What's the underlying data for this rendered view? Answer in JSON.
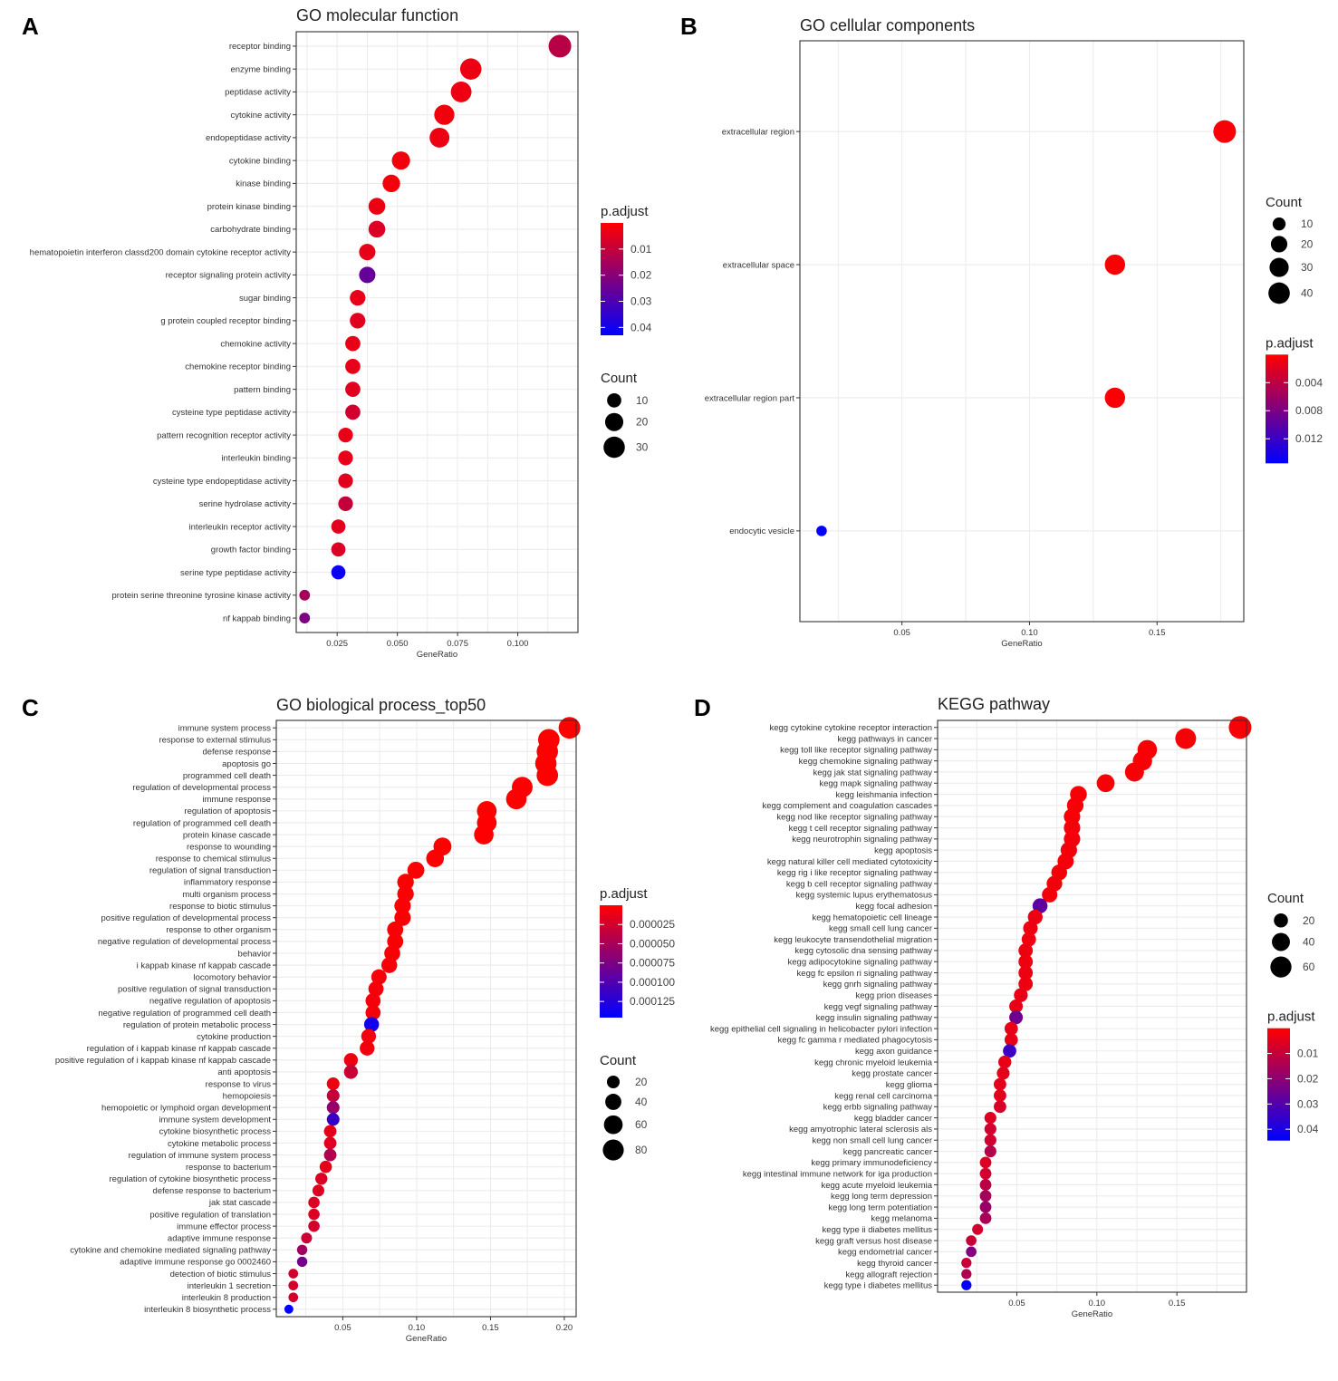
{
  "panels": [
    {
      "letter": "A"
    },
    {
      "letter": "B"
    },
    {
      "letter": "C"
    },
    {
      "letter": "D"
    }
  ],
  "colors": {
    "low_p": "#ff0000",
    "high_p": "#0000ff",
    "grid": "#ebebeb",
    "frame": "#333333"
  },
  "chart_data": [
    {
      "type": "scatter",
      "title": "GO molecular function",
      "xlabel": "GeneRatio",
      "xlim": [
        0.008,
        0.125
      ],
      "xticks": [
        0.025,
        0.05,
        0.075,
        0.1
      ],
      "xtick_labels": [
        "0.025",
        "0.050",
        "0.075",
        "0.100"
      ],
      "categories": [
        "receptor binding",
        "enzyme binding",
        "peptidase activity",
        "cytokine activity",
        "endopeptidase activity",
        "cytokine binding",
        "kinase binding",
        "protein kinase binding",
        "carbohydrate binding",
        "hematopoietin interferon classd200 domain cytokine receptor activity",
        "receptor signaling protein activity",
        "sugar binding",
        "g protein coupled receptor binding",
        "chemokine activity",
        "chemokine receptor binding",
        "pattern binding",
        "cysteine type peptidase activity",
        "pattern recognition receptor activity",
        "interleukin binding",
        "cysteine type endopeptidase activity",
        "serine hydrolase activity",
        "interleukin receptor activity",
        "growth factor binding",
        "serine type peptidase activity",
        "protein serine threonine tyrosine kinase activity",
        "nf kappab binding"
      ],
      "gene_ratio": [
        0.1175,
        0.0805,
        0.0765,
        0.0695,
        0.0675,
        0.0515,
        0.0475,
        0.0415,
        0.0415,
        0.0375,
        0.0375,
        0.0335,
        0.0335,
        0.0315,
        0.0315,
        0.0315,
        0.0315,
        0.0285,
        0.0285,
        0.0285,
        0.0285,
        0.0255,
        0.0255,
        0.0255,
        0.0115,
        0.0115
      ],
      "count": [
        35,
        30,
        28,
        26,
        25,
        20,
        18,
        16,
        16,
        15,
        15,
        13,
        13,
        12,
        12,
        12,
        12,
        11,
        11,
        11,
        11,
        10,
        10,
        10,
        4,
        4
      ],
      "p_adjust": [
        0.012,
        0.003,
        0.003,
        0.002,
        0.003,
        0.002,
        0.002,
        0.003,
        0.006,
        0.004,
        0.026,
        0.004,
        0.005,
        0.004,
        0.004,
        0.005,
        0.008,
        0.004,
        0.004,
        0.005,
        0.01,
        0.005,
        0.006,
        0.041,
        0.015,
        0.022
      ],
      "legend": {
        "color_title": "p.adjust",
        "color_range": [
          0.0,
          0.043
        ],
        "color_ticks": [
          0.01,
          0.02,
          0.03,
          0.04
        ],
        "color_labels": [
          "0.01",
          "0.02",
          "0.03",
          "0.04"
        ],
        "size_title": "Count",
        "sizes": [
          10,
          20,
          30
        ],
        "size_labels": [
          "10",
          "20",
          "30"
        ],
        "order": "color-first"
      }
    },
    {
      "type": "scatter",
      "title": "GO cellular components",
      "xlabel": "GeneRatio",
      "xlim": [
        0.01,
        0.184
      ],
      "xticks": [
        0.05,
        0.1,
        0.15
      ],
      "xtick_labels": [
        "0.05",
        "0.10",
        "0.15"
      ],
      "categories": [
        "extracellular region",
        "extracellular space",
        "extracellular region part",
        "endocytic vesicle"
      ],
      "gene_ratio": [
        0.1765,
        0.1335,
        0.1335,
        0.0185
      ],
      "count": [
        46,
        35,
        35,
        5
      ],
      "p_adjust": [
        0.0004,
        0.0003,
        0.0003,
        0.0155
      ],
      "legend": {
        "color_title": "p.adjust",
        "color_range": [
          0.0,
          0.0155
        ],
        "color_ticks": [
          0.004,
          0.008,
          0.012
        ],
        "color_labels": [
          "0.004",
          "0.008",
          "0.012"
        ],
        "size_title": "Count",
        "sizes": [
          10,
          20,
          30,
          40
        ],
        "size_labels": [
          "10",
          "20",
          "30",
          "40"
        ],
        "order": "size-first"
      }
    },
    {
      "type": "scatter",
      "title": "GO biological process_top50",
      "xlabel": "GeneRatio",
      "xlim": [
        0.005,
        0.208
      ],
      "xticks": [
        0.05,
        0.1,
        0.15,
        0.2
      ],
      "xtick_labels": [
        "0.05",
        "0.10",
        "0.15",
        "0.20"
      ],
      "categories": [
        "immune system process",
        "response to external stimulus",
        "defense response",
        "apoptosis go",
        "programmed cell death",
        "regulation of developmental process",
        "immune response",
        "regulation of apoptosis",
        "regulation of programmed cell death",
        "protein kinase cascade",
        "response to wounding",
        "response to chemical stimulus",
        "regulation of signal transduction",
        "inflammatory response",
        "multi organism process",
        "response to biotic stimulus",
        "positive regulation of developmental process",
        "response to other organism",
        "negative regulation of developmental process",
        "behavior",
        "i kappab kinase nf kappab cascade",
        "locomotory behavior",
        "positive regulation of signal transduction",
        "negative regulation of apoptosis",
        "negative regulation of programmed cell death",
        "regulation of protein metabolic process",
        "cytokine production",
        "regulation of i kappab kinase nf kappab cascade",
        "positive regulation of i kappab kinase nf kappab cascade",
        "anti apoptosis",
        "response to virus",
        "hemopoiesis",
        "hemopoietic or lymphoid organ development",
        "immune system development",
        "cytokine biosynthetic process",
        "cytokine metabolic process",
        "regulation of immune system process",
        "response to bacterium",
        "regulation of cytokine biosynthetic process",
        "defense response to bacterium",
        "jak stat cascade",
        "positive regulation of translation",
        "immune effector process",
        "adaptive immune response",
        "cytokine and chemokine mediated signaling pathway",
        "adaptive immune response go 0002460",
        "detection of biotic stimulus",
        "interleukin 1 secretion",
        "interleukin 8 production",
        "interleukin 8 biosynthetic process"
      ],
      "gene_ratio": [
        0.2035,
        0.1895,
        0.1885,
        0.1875,
        0.1885,
        0.1715,
        0.1675,
        0.1475,
        0.1475,
        0.1455,
        0.1175,
        0.1125,
        0.0995,
        0.0925,
        0.0925,
        0.0905,
        0.0905,
        0.0855,
        0.0855,
        0.0835,
        0.0815,
        0.0745,
        0.0725,
        0.0705,
        0.0705,
        0.0695,
        0.0675,
        0.0665,
        0.0555,
        0.0555,
        0.0435,
        0.0435,
        0.0435,
        0.0435,
        0.0415,
        0.0415,
        0.0415,
        0.0385,
        0.0355,
        0.0335,
        0.0305,
        0.0305,
        0.0305,
        0.0255,
        0.0225,
        0.0225,
        0.0165,
        0.0165,
        0.0165,
        0.0135
      ],
      "count": [
        88,
        85,
        84,
        84,
        85,
        78,
        76,
        68,
        68,
        67,
        54,
        52,
        46,
        43,
        43,
        42,
        42,
        40,
        40,
        39,
        38,
        35,
        34,
        33,
        33,
        32,
        31,
        31,
        26,
        26,
        20,
        20,
        20,
        20,
        19,
        19,
        19,
        18,
        17,
        16,
        14,
        14,
        14,
        12,
        10,
        10,
        8,
        8,
        8,
        6
      ],
      "p_adjust": [
        2e-08,
        1e-07,
        1e-07,
        2e-07,
        2e-07,
        3e-07,
        4e-07,
        5e-07,
        5e-07,
        6e-07,
        1e-06,
        1.2e-06,
        2e-06,
        2e-06,
        2e-06,
        2.5e-06,
        3e-06,
        3e-06,
        3e-06,
        3.5e-06,
        4e-06,
        5e-06,
        5e-06,
        6e-06,
        6e-06,
        0.000135,
        7e-06,
        8e-06,
        1e-05,
        3.2e-05,
        1e-05,
        3.5e-05,
        6e-05,
        0.000115,
        1.5e-05,
        1.8e-05,
        4.5e-05,
        1.5e-05,
        2e-05,
        2e-05,
        2e-05,
        2e-05,
        2.5e-05,
        3e-05,
        5.5e-05,
        8e-05,
        2.5e-05,
        2.5e-05,
        2.5e-05,
        0.000145
      ],
      "legend": {
        "color_title": "p.adjust",
        "color_range": [
          0.0,
          0.000146
        ],
        "color_ticks": [
          2.5e-05,
          5e-05,
          7.5e-05,
          0.0001,
          0.000125
        ],
        "color_labels": [
          "0.000025",
          "0.000050",
          "0.000075",
          "0.000100",
          "0.000125"
        ],
        "size_title": "Count",
        "sizes": [
          20,
          40,
          60,
          80
        ],
        "size_labels": [
          "20",
          "40",
          "60",
          "80"
        ],
        "order": "color-first"
      }
    },
    {
      "type": "scatter",
      "title": "KEGG pathway",
      "xlabel": "GeneRatio",
      "xlim": [
        0.0005,
        0.1935
      ],
      "xticks": [
        0.05,
        0.1,
        0.15
      ],
      "xtick_labels": [
        "0.05",
        "0.10",
        "0.15"
      ],
      "categories": [
        "kegg cytokine cytokine receptor interaction",
        "kegg pathways in cancer",
        "kegg toll like receptor signaling pathway",
        "kegg chemokine signaling pathway",
        "kegg jak stat signaling pathway",
        "kegg mapk signaling pathway",
        "kegg leishmania infection",
        "kegg complement and coagulation cascades",
        "kegg nod like receptor signaling pathway",
        "kegg t cell receptor signaling pathway",
        "kegg neurotrophin signaling pathway",
        "kegg apoptosis",
        "kegg natural killer cell mediated cytotoxicity",
        "kegg rig i like receptor signaling pathway",
        "kegg b cell receptor signaling pathway",
        "kegg systemic lupus erythematosus",
        "kegg focal adhesion",
        "kegg hematopoietic cell lineage",
        "kegg small cell lung cancer",
        "kegg leukocyte transendothelial migration",
        "kegg cytosolic dna sensing pathway",
        "kegg adipocytokine signaling pathway",
        "kegg fc epsilon ri signaling pathway",
        "kegg gnrh signaling pathway",
        "kegg prion diseases",
        "kegg vegf signaling pathway",
        "kegg insulin signaling pathway",
        "kegg epithelial cell signaling in helicobacter pylori infection",
        "kegg fc gamma r mediated phagocytosis",
        "kegg axon guidance",
        "kegg chronic myeloid leukemia",
        "kegg prostate cancer",
        "kegg glioma",
        "kegg renal cell carcinoma",
        "kegg erbb signaling pathway",
        "kegg bladder cancer",
        "kegg amyotrophic lateral sclerosis als",
        "kegg non small cell lung cancer",
        "kegg pancreatic cancer",
        "kegg primary immunodeficiency",
        "kegg intestinal immune network for iga production",
        "kegg acute myeloid leukemia",
        "kegg long term depression",
        "kegg long term potentiation",
        "kegg melanoma",
        "kegg type ii diabetes mellitus",
        "kegg graft versus host disease",
        "kegg endometrial cancer",
        "kegg thyroid cancer",
        "kegg allograft rejection",
        "kegg type i diabetes mellitus"
      ],
      "gene_ratio": [
        0.1895,
        0.1555,
        0.1315,
        0.1285,
        0.1235,
        0.1055,
        0.0885,
        0.0865,
        0.0845,
        0.0845,
        0.0845,
        0.0825,
        0.0805,
        0.0765,
        0.0735,
        0.0705,
        0.0645,
        0.0615,
        0.0585,
        0.0575,
        0.0555,
        0.0555,
        0.0555,
        0.0555,
        0.0525,
        0.0495,
        0.0495,
        0.0465,
        0.0465,
        0.0455,
        0.0425,
        0.0415,
        0.0395,
        0.0395,
        0.0395,
        0.0335,
        0.0335,
        0.0335,
        0.0335,
        0.0305,
        0.0305,
        0.0305,
        0.0305,
        0.0305,
        0.0305,
        0.0255,
        0.0215,
        0.0215,
        0.0185,
        0.0185,
        0.0185
      ],
      "count": [
        72,
        58,
        49,
        48,
        46,
        39,
        33,
        32,
        31,
        31,
        31,
        31,
        30,
        28,
        27,
        26,
        24,
        23,
        22,
        21,
        21,
        21,
        21,
        21,
        19,
        18,
        18,
        17,
        17,
        17,
        16,
        15,
        14,
        14,
        14,
        12,
        12,
        12,
        12,
        11,
        11,
        11,
        11,
        11,
        11,
        9,
        8,
        8,
        7,
        7,
        7
      ],
      "p_adjust": [
        0.001,
        0.001,
        0.001,
        0.001,
        0.001,
        0.001,
        0.001,
        0.001,
        0.001,
        0.002,
        0.002,
        0.002,
        0.002,
        0.002,
        0.002,
        0.002,
        0.028,
        0.003,
        0.003,
        0.003,
        0.003,
        0.003,
        0.003,
        0.003,
        0.004,
        0.004,
        0.025,
        0.004,
        0.004,
        0.034,
        0.004,
        0.005,
        0.005,
        0.005,
        0.007,
        0.006,
        0.008,
        0.008,
        0.013,
        0.006,
        0.008,
        0.012,
        0.016,
        0.018,
        0.015,
        0.008,
        0.01,
        0.022,
        0.01,
        0.014,
        0.044
      ],
      "legend": {
        "color_title": "p.adjust",
        "color_range": [
          0.0,
          0.0445
        ],
        "color_ticks": [
          0.01,
          0.02,
          0.03,
          0.04
        ],
        "color_labels": [
          "0.01",
          "0.02",
          "0.03",
          "0.04"
        ],
        "size_title": "Count",
        "sizes": [
          20,
          40,
          60
        ],
        "size_labels": [
          "20",
          "40",
          "60"
        ],
        "order": "size-first"
      }
    }
  ]
}
